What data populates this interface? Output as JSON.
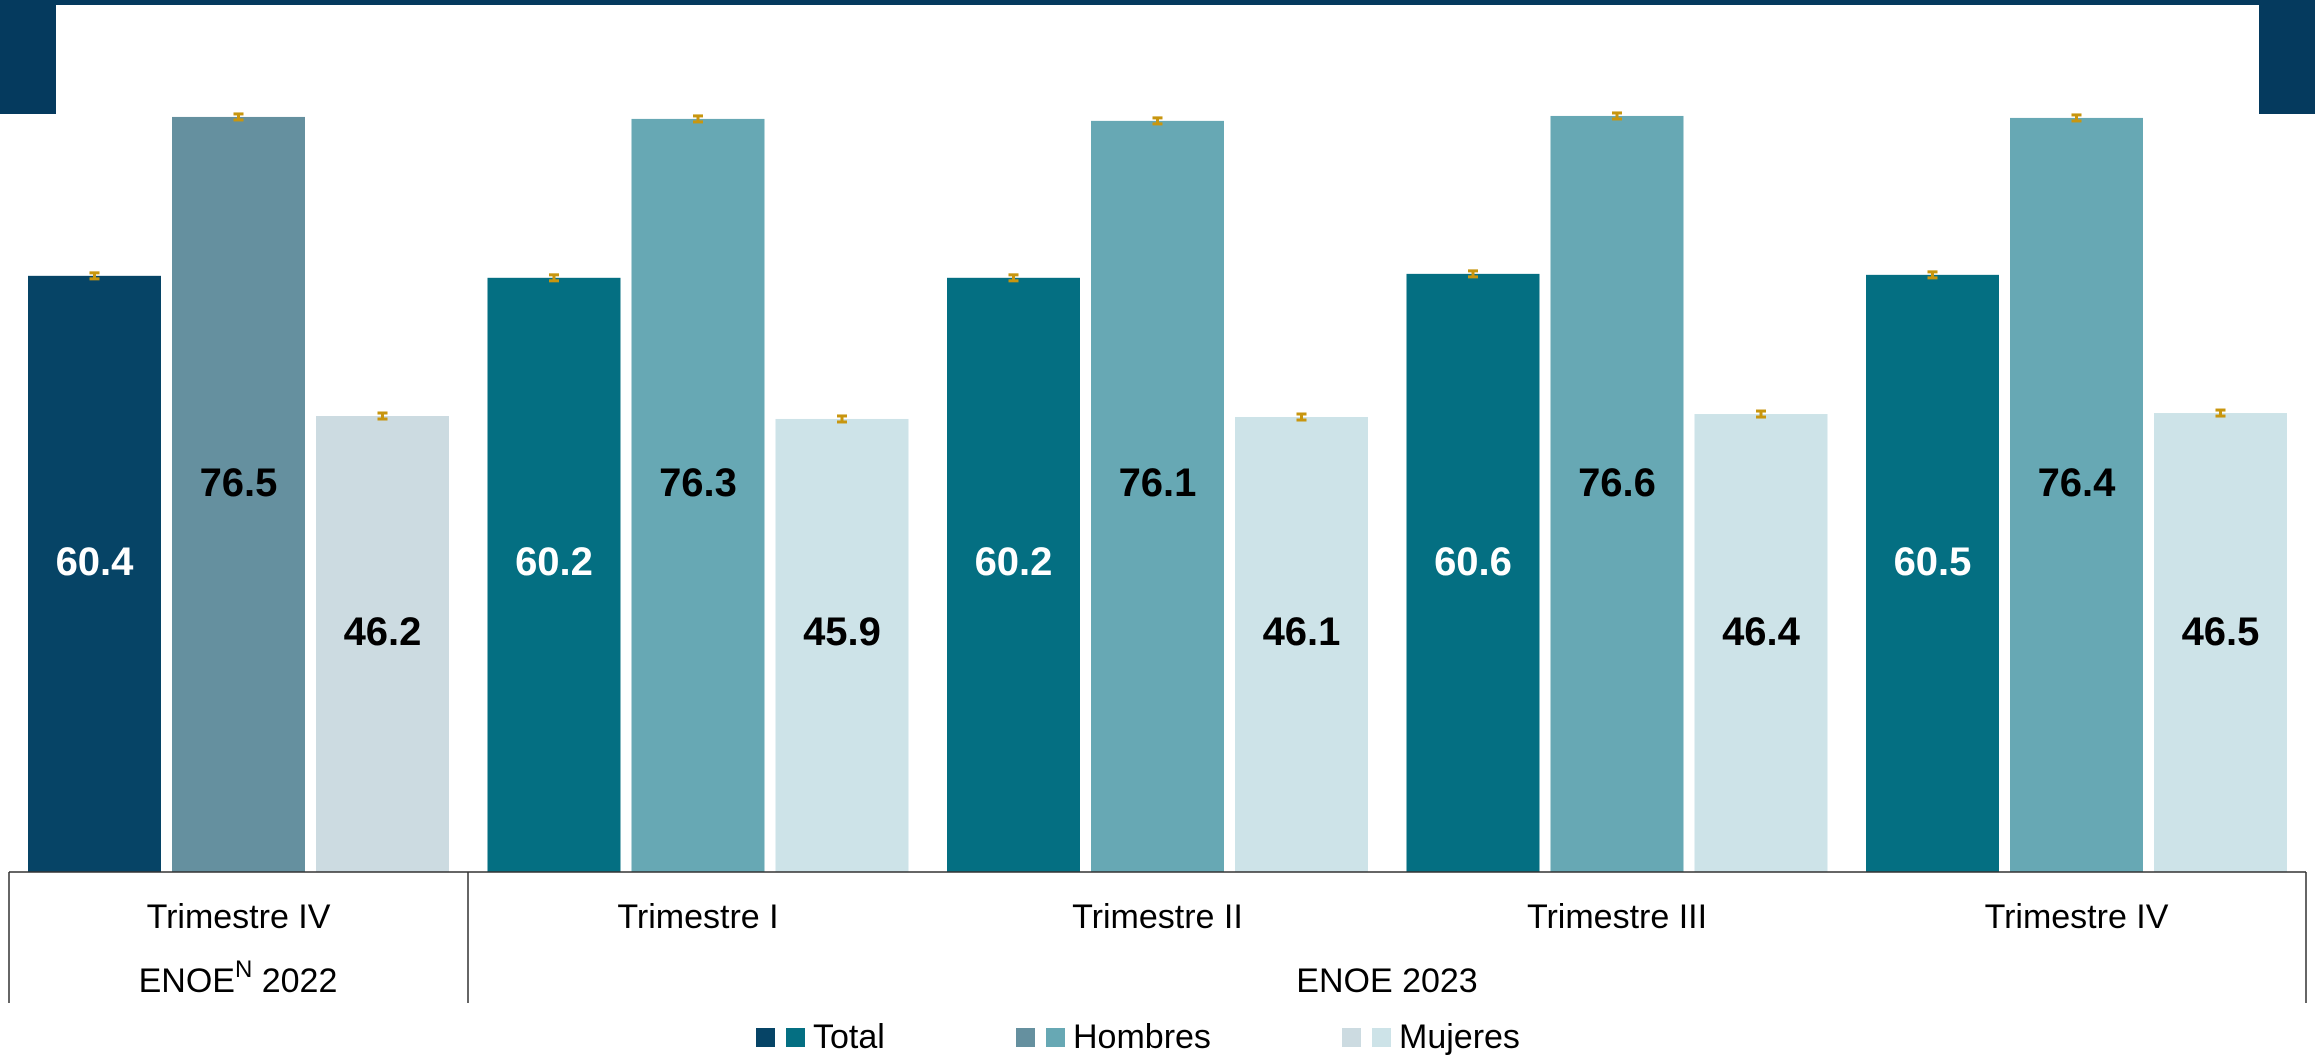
{
  "colors": {
    "frame": "#053a5e",
    "total_2022": "#064466",
    "hombres_2022": "#65909f",
    "mujeres_2022": "#ccdbe1",
    "total_2023": "#046f82",
    "hombres_2023": "#67a8b4",
    "mujeres_2023": "#cde3e8",
    "error_bar": "#c8960f"
  },
  "chart_data": {
    "type": "bar",
    "categories": [
      "Trimestre IV",
      "Trimestre I",
      "Trimestre II",
      "Trimestre III",
      "Trimestre IV"
    ],
    "groups": [
      {
        "label": "ENOE",
        "sup": "N",
        "year": "2022",
        "categories": [
          0
        ]
      },
      {
        "label": "ENOE 2023",
        "sup": "",
        "year": "",
        "categories": [
          1,
          2,
          3,
          4
        ]
      }
    ],
    "series": [
      {
        "name": "Total",
        "values": [
          60.4,
          60.2,
          60.2,
          60.6,
          60.5
        ]
      },
      {
        "name": "Hombres",
        "values": [
          76.5,
          76.3,
          76.1,
          76.6,
          76.4
        ]
      },
      {
        "name": "Mujeres",
        "values": [
          46.2,
          45.9,
          46.1,
          46.4,
          46.5
        ]
      }
    ],
    "error_bars": true,
    "value_labels": true,
    "ylim": [
      0,
      77
    ],
    "legend_position": "bottom",
    "grid": false
  }
}
